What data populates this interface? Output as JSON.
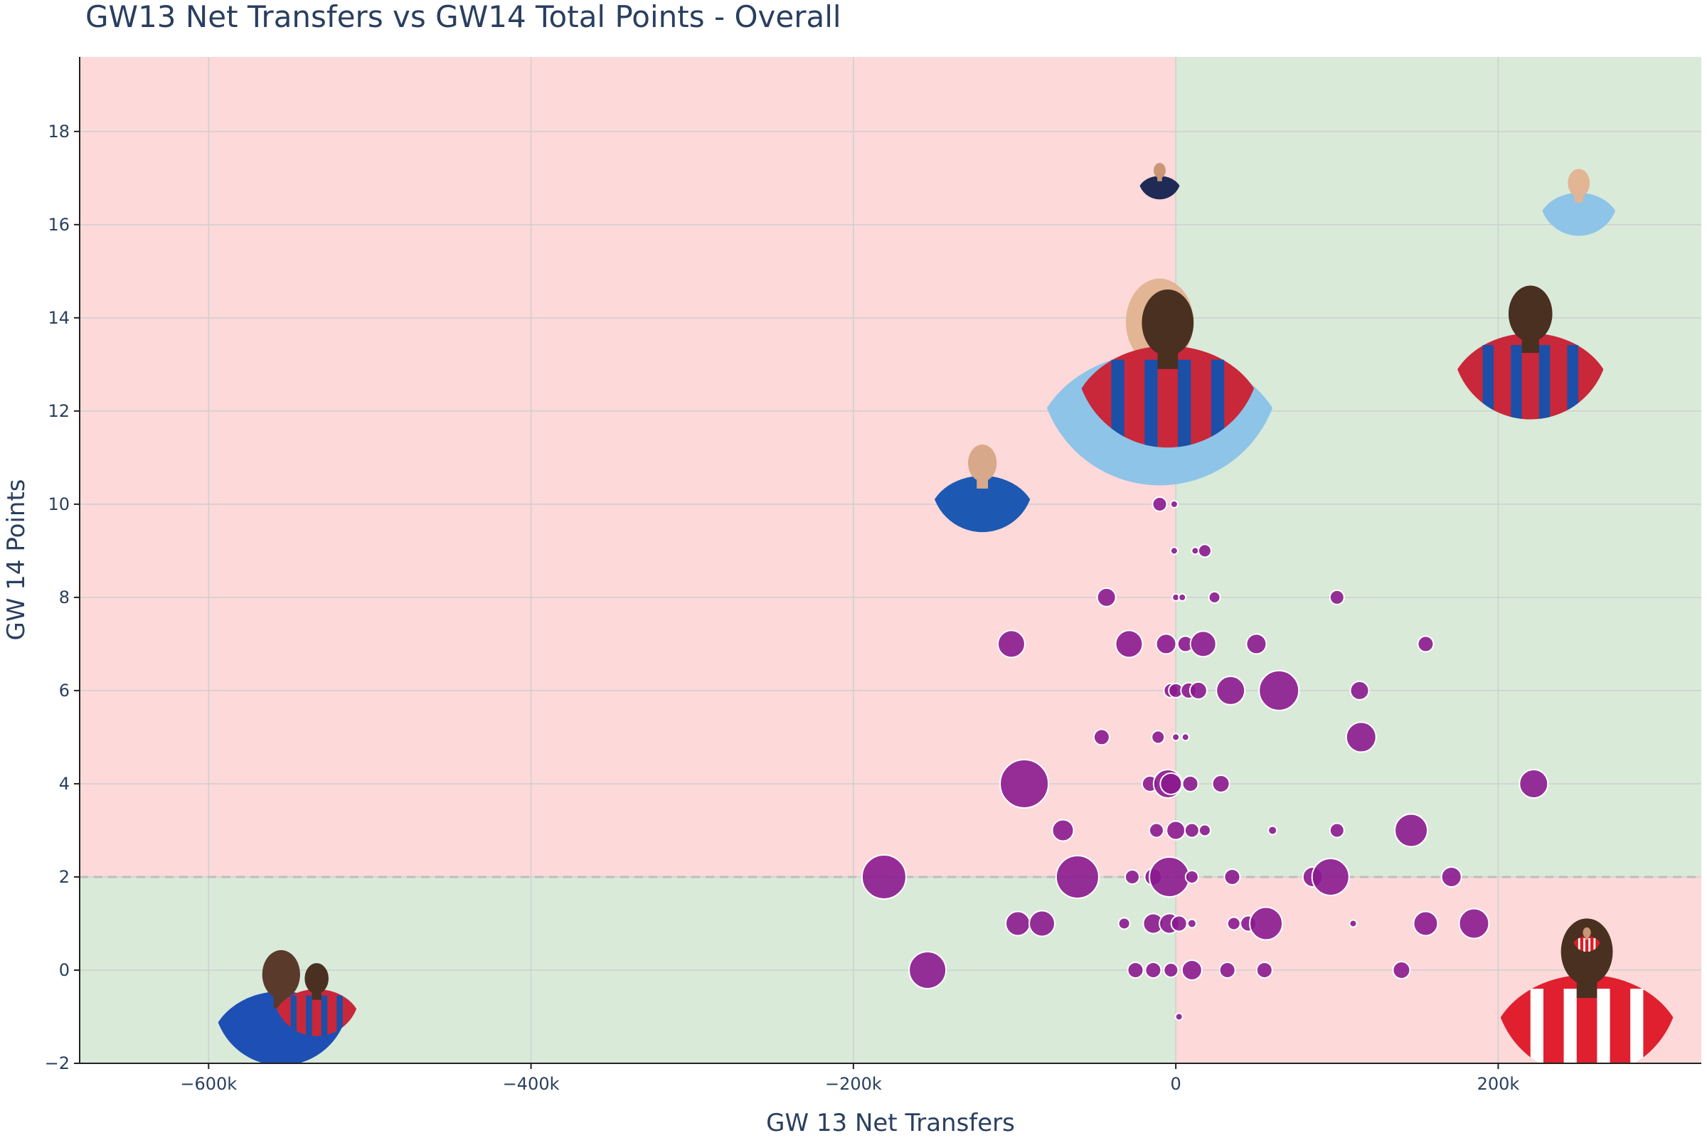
{
  "chart_data": {
    "type": "scatter",
    "title": "GW13 Net Transfers vs GW14 Total Points - Overall",
    "xlabel": "GW 13 Net Transfers",
    "ylabel": "GW 14 Points",
    "xlim": [
      -680000,
      326000
    ],
    "ylim": [
      -2,
      19.6
    ],
    "xticks": [
      -600000,
      -400000,
      -200000,
      0,
      200000
    ],
    "xtick_labels": [
      "−600k",
      "−400k",
      "−200k",
      "0",
      "200k"
    ],
    "yticks": [
      -2,
      0,
      2,
      4,
      6,
      8,
      10,
      12,
      14,
      16,
      18
    ],
    "ytick_labels": [
      "−2",
      "0",
      "2",
      "4",
      "6",
      "8",
      "10",
      "12",
      "14",
      "16",
      "18"
    ],
    "reference_lines": {
      "x": 0,
      "y": 2
    },
    "quadrant_colors": {
      "good": "#d9ead9",
      "bad": "#fdd9d9"
    },
    "marker_color": "#8b1a8f",
    "marker_outline": "#ffffff",
    "grid": true,
    "points": [
      {
        "x": -10000,
        "y": 10,
        "r": 10
      },
      {
        "x": -1000,
        "y": 10,
        "r": 5
      },
      {
        "x": -1000,
        "y": 9,
        "r": 5
      },
      {
        "x": 12000,
        "y": 9,
        "r": 5
      },
      {
        "x": 18000,
        "y": 9,
        "r": 9
      },
      {
        "x": -43000,
        "y": 8,
        "r": 13
      },
      {
        "x": 0,
        "y": 8,
        "r": 5
      },
      {
        "x": 4000,
        "y": 8,
        "r": 5
      },
      {
        "x": 24000,
        "y": 8,
        "r": 8
      },
      {
        "x": 100000,
        "y": 8,
        "r": 10
      },
      {
        "x": -102000,
        "y": 7,
        "r": 19
      },
      {
        "x": -29000,
        "y": 7,
        "r": 19
      },
      {
        "x": -6000,
        "y": 7,
        "r": 14
      },
      {
        "x": 6000,
        "y": 7,
        "r": 11
      },
      {
        "x": 17000,
        "y": 7,
        "r": 18
      },
      {
        "x": 50000,
        "y": 7,
        "r": 14
      },
      {
        "x": 155000,
        "y": 7,
        "r": 11
      },
      {
        "x": -3000,
        "y": 6,
        "r": 10
      },
      {
        "x": 0,
        "y": 6,
        "r": 10
      },
      {
        "x": 8000,
        "y": 6,
        "r": 11
      },
      {
        "x": 14000,
        "y": 6,
        "r": 12
      },
      {
        "x": 34000,
        "y": 6,
        "r": 20
      },
      {
        "x": 64000,
        "y": 6,
        "r": 28
      },
      {
        "x": 114000,
        "y": 6,
        "r": 13
      },
      {
        "x": -46000,
        "y": 5,
        "r": 11
      },
      {
        "x": -11000,
        "y": 5,
        "r": 9
      },
      {
        "x": 0,
        "y": 5,
        "r": 5
      },
      {
        "x": 6000,
        "y": 5,
        "r": 5
      },
      {
        "x": 115000,
        "y": 5,
        "r": 21
      },
      {
        "x": -94000,
        "y": 4,
        "r": 34
      },
      {
        "x": -16000,
        "y": 4,
        "r": 11
      },
      {
        "x": -5000,
        "y": 4,
        "r": 20
      },
      {
        "x": -3000,
        "y": 4,
        "r": 15
      },
      {
        "x": 9000,
        "y": 4,
        "r": 11
      },
      {
        "x": 28000,
        "y": 4,
        "r": 12
      },
      {
        "x": 222000,
        "y": 4,
        "r": 20
      },
      {
        "x": -70000,
        "y": 3,
        "r": 15
      },
      {
        "x": -12000,
        "y": 3,
        "r": 10
      },
      {
        "x": 0,
        "y": 3,
        "r": 13
      },
      {
        "x": 10000,
        "y": 3,
        "r": 10
      },
      {
        "x": 18000,
        "y": 3,
        "r": 8
      },
      {
        "x": 60000,
        "y": 3,
        "r": 6
      },
      {
        "x": 100000,
        "y": 3,
        "r": 10
      },
      {
        "x": 146000,
        "y": 3,
        "r": 23
      },
      {
        "x": -181000,
        "y": 2,
        "r": 31
      },
      {
        "x": -61000,
        "y": 2,
        "r": 30
      },
      {
        "x": -27000,
        "y": 2,
        "r": 10
      },
      {
        "x": -14000,
        "y": 2,
        "r": 12
      },
      {
        "x": -4000,
        "y": 2,
        "r": 28
      },
      {
        "x": 10000,
        "y": 2,
        "r": 9
      },
      {
        "x": 35000,
        "y": 2,
        "r": 11
      },
      {
        "x": 85000,
        "y": 2,
        "r": 14
      },
      {
        "x": 96000,
        "y": 2,
        "r": 26
      },
      {
        "x": 171000,
        "y": 2,
        "r": 14
      },
      {
        "x": -98000,
        "y": 1,
        "r": 17
      },
      {
        "x": -83000,
        "y": 1,
        "r": 18
      },
      {
        "x": -32000,
        "y": 1,
        "r": 8
      },
      {
        "x": -14000,
        "y": 1,
        "r": 14
      },
      {
        "x": -4000,
        "y": 1,
        "r": 14
      },
      {
        "x": 2000,
        "y": 1,
        "r": 11
      },
      {
        "x": 10000,
        "y": 1,
        "r": 6
      },
      {
        "x": 36000,
        "y": 1,
        "r": 9
      },
      {
        "x": 45000,
        "y": 1,
        "r": 11
      },
      {
        "x": 56000,
        "y": 1,
        "r": 23
      },
      {
        "x": 110000,
        "y": 1,
        "r": 5
      },
      {
        "x": 155000,
        "y": 1,
        "r": 17
      },
      {
        "x": 185000,
        "y": 1,
        "r": 21
      },
      {
        "x": -154000,
        "y": 0,
        "r": 26
      },
      {
        "x": -25000,
        "y": 0,
        "r": 11
      },
      {
        "x": -14000,
        "y": 0,
        "r": 11
      },
      {
        "x": -3000,
        "y": 0,
        "r": 10
      },
      {
        "x": 10000,
        "y": 0,
        "r": 14
      },
      {
        "x": 32000,
        "y": 0,
        "r": 11
      },
      {
        "x": 55000,
        "y": 0,
        "r": 11
      },
      {
        "x": 140000,
        "y": 0,
        "r": 12
      },
      {
        "x": 2000,
        "y": -1,
        "r": 5
      }
    ],
    "player_markers": [
      {
        "x": -555000,
        "y": -0.6,
        "r": 95,
        "kit": "chelsea"
      },
      {
        "x": -533000,
        "y": -0.5,
        "r": 60,
        "kit": "palace"
      },
      {
        "x": -120000,
        "y": 10.5,
        "r": 72,
        "kit": "everton"
      },
      {
        "x": -10000,
        "y": 13,
        "r": 170,
        "kit": "mancity"
      },
      {
        "x": -5000,
        "y": 13.2,
        "r": 130,
        "kit": "palace"
      },
      {
        "x": -10000,
        "y": 17,
        "r": 30,
        "kit": "navy"
      },
      {
        "x": 220000,
        "y": 13.5,
        "r": 110,
        "kit": "palace"
      },
      {
        "x": 250000,
        "y": 16.6,
        "r": 55,
        "kit": "mancity"
      },
      {
        "x": 255000,
        "y": -0.3,
        "r": 130,
        "kit": "brentford"
      },
      {
        "x": 255000,
        "y": 0.7,
        "r": 20,
        "kit": "arsenal"
      }
    ]
  }
}
